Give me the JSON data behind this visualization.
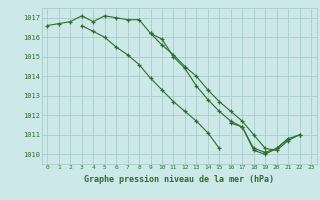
{
  "title": "Graphe pression niveau de la mer (hPa)",
  "bg_color": "#cce8e8",
  "grid_color": "#aacccc",
  "line_color": "#2d6e2d",
  "marker_color": "#2d6e2d",
  "ylim": [
    1009.5,
    1017.5
  ],
  "xlim": [
    -0.5,
    23.5
  ],
  "yticks": [
    1010,
    1011,
    1012,
    1013,
    1014,
    1015,
    1016,
    1017
  ],
  "xticks": [
    0,
    1,
    2,
    3,
    4,
    5,
    6,
    7,
    8,
    9,
    10,
    11,
    12,
    13,
    14,
    15,
    16,
    17,
    18,
    19,
    20,
    21,
    22,
    23
  ],
  "series1": [
    1016.6,
    1016.7,
    1016.8,
    1017.1,
    1016.8,
    1017.1,
    1017.0,
    1016.9,
    1016.9,
    1016.2,
    1015.9,
    1015.0,
    1014.4,
    1013.5,
    1012.8,
    1012.2,
    1011.7,
    1011.4,
    1010.3,
    1010.1,
    1010.3,
    1010.8,
    null,
    null
  ],
  "series2": [
    null,
    null,
    null,
    1016.6,
    1016.3,
    1016.0,
    1015.5,
    1015.1,
    1014.6,
    1013.9,
    1013.3,
    1012.7,
    1012.2,
    1011.7,
    1011.1,
    1010.3,
    null,
    null,
    null,
    null,
    null,
    null,
    null,
    null
  ],
  "series3": [
    null,
    null,
    null,
    null,
    null,
    null,
    null,
    null,
    null,
    null,
    null,
    null,
    null,
    null,
    null,
    null,
    1011.6,
    1011.4,
    1010.2,
    1010.0,
    1010.3,
    1010.8,
    1011.0,
    null
  ],
  "series4": [
    null,
    null,
    null,
    null,
    null,
    null,
    null,
    null,
    null,
    1016.2,
    1015.6,
    1015.1,
    1014.5,
    1014.0,
    1013.3,
    1012.7,
    1012.2,
    1011.7,
    1011.0,
    1010.3,
    1010.2,
    1010.7,
    1011.0,
    null
  ]
}
